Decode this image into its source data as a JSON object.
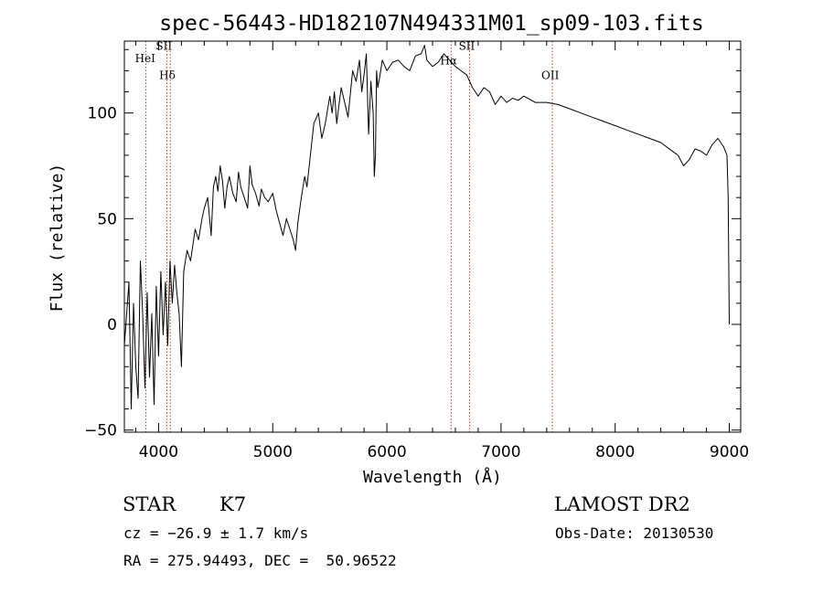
{
  "chart_data": {
    "type": "line",
    "title": "spec-56443-HD182107N494331M01_sp09-103.fits",
    "xlabel": "Wavelength (Å)",
    "ylabel": "Flux (relative)",
    "xlim": [
      3700,
      9100
    ],
    "ylim": [
      -51,
      134
    ],
    "x_ticks": [
      4000,
      5000,
      6000,
      7000,
      8000,
      9000
    ],
    "y_ticks": [
      -50,
      0,
      50,
      100
    ],
    "grid": false,
    "legend": "none",
    "line_color": "#000000",
    "marker_color": "#c0392b",
    "series": [
      {
        "x": [
          3700,
          3740,
          3760,
          3780,
          3800,
          3820,
          3840,
          3860,
          3880,
          3900,
          3920,
          3940,
          3960,
          3980,
          4000,
          4020,
          4040,
          4060,
          4080,
          4100,
          4120,
          4140,
          4160,
          4180,
          4200,
          4220,
          4250,
          4280,
          4320,
          4350,
          4380,
          4400,
          4430,
          4460,
          4480,
          4500,
          4520,
          4540,
          4560,
          4580,
          4600,
          4620,
          4650,
          4680,
          4700,
          4720,
          4750,
          4780,
          4800,
          4820,
          4850,
          4880,
          4900,
          4930,
          4960,
          5000,
          5030,
          5060,
          5090,
          5120,
          5150,
          5180,
          5200,
          5220,
          5250,
          5280,
          5300,
          5330,
          5360,
          5400,
          5430,
          5460,
          5500,
          5520,
          5540,
          5560,
          5600,
          5630,
          5660,
          5700,
          5730,
          5760,
          5780,
          5800,
          5820,
          5840,
          5860,
          5880,
          5890,
          5900,
          5910,
          5920,
          5940,
          5960,
          6000,
          6050,
          6100,
          6150,
          6200,
          6250,
          6300,
          6330,
          6350,
          6400,
          6450,
          6500,
          6550,
          6600,
          6650,
          6700,
          6750,
          6800,
          6850,
          6900,
          6950,
          7000,
          7050,
          7100,
          7150,
          7200,
          7300,
          7400,
          7500,
          7600,
          7700,
          7800,
          7900,
          8000,
          8100,
          8200,
          8300,
          8400,
          8500,
          8550,
          8600,
          8650,
          8700,
          8750,
          8800,
          8850,
          8900,
          8950,
          8980,
          8990,
          9000
        ],
        "y": [
          -10,
          20,
          -40,
          10,
          -20,
          -35,
          30,
          5,
          -30,
          15,
          -25,
          5,
          -38,
          18,
          -15,
          25,
          -5,
          20,
          -10,
          30,
          10,
          28,
          15,
          5,
          -20,
          25,
          35,
          30,
          45,
          40,
          50,
          55,
          60,
          42,
          65,
          70,
          63,
          75,
          68,
          55,
          65,
          70,
          62,
          58,
          72,
          65,
          60,
          55,
          75,
          66,
          62,
          56,
          64,
          60,
          58,
          62,
          54,
          48,
          42,
          50,
          45,
          40,
          35,
          48,
          60,
          70,
          65,
          80,
          95,
          100,
          88,
          95,
          108,
          100,
          110,
          95,
          112,
          105,
          98,
          120,
          115,
          125,
          110,
          118,
          128,
          90,
          115,
          100,
          70,
          80,
          120,
          112,
          118,
          125,
          120,
          124,
          125,
          122,
          120,
          127,
          128,
          132,
          125,
          122,
          124,
          128,
          125,
          122,
          120,
          118,
          112,
          108,
          112,
          110,
          104,
          108,
          105,
          107,
          106,
          108,
          105,
          105,
          104,
          102,
          100,
          98,
          96,
          94,
          92,
          90,
          88,
          86,
          82,
          80,
          75,
          78,
          83,
          82,
          80,
          85,
          88,
          84,
          80,
          60,
          0
        ]
      }
    ],
    "spectral_lines": [
      {
        "label": "HeI",
        "wavelength": 3889,
        "label_y": 124
      },
      {
        "label": "SII",
        "wavelength": 4072,
        "label_y": 130
      },
      {
        "label": "Hδ",
        "wavelength": 4102,
        "label_y": 116
      },
      {
        "label": "Hα",
        "wavelength": 6563,
        "label_y": 123
      },
      {
        "label": "SII",
        "wavelength": 6725,
        "label_y": 130
      },
      {
        "label": "OII",
        "wavelength": 7450,
        "label_y": 116
      }
    ]
  },
  "info": {
    "object_class": "STAR",
    "subclass": "K7",
    "survey": "LAMOST DR2",
    "cz": "cz = −26.9 ± 1.7 km/s",
    "obs_date": "Obs-Date: 20130530",
    "coords": "RA = 275.94493, DEC =  50.96522"
  }
}
